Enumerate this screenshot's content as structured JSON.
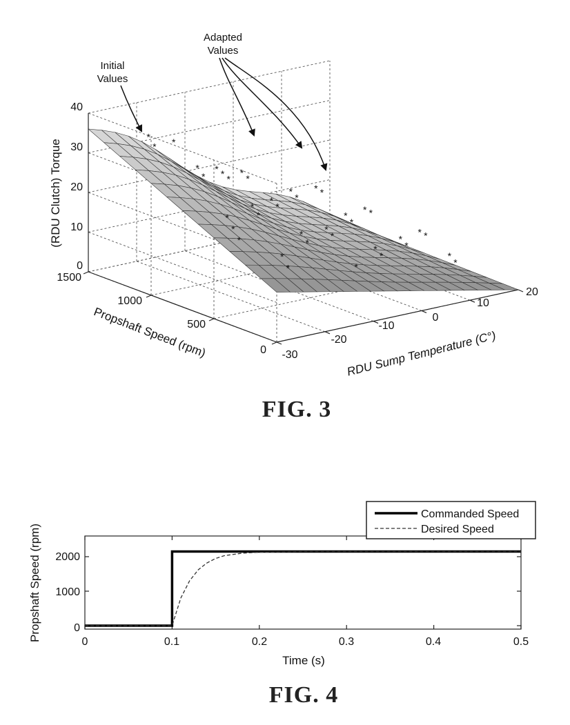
{
  "chart_data": [
    {
      "type": "surface",
      "caption": "FIG. 3",
      "xlabel": "RDU Sump Temperature (C°)",
      "ylabel": "Propshaft Speed (rpm)",
      "zlabel": "(RDU Clutch) Torque",
      "xlim": [
        -30,
        20
      ],
      "ylim": [
        0,
        1500
      ],
      "zlim": [
        0,
        40
      ],
      "x_ticks": [
        "-30",
        "-20",
        "-10",
        "0",
        "10",
        "20"
      ],
      "y_ticks": [
        "0",
        "500",
        "1000",
        "1500"
      ],
      "z_ticks": [
        "0",
        "10",
        "20",
        "30",
        "40"
      ],
      "grid": true,
      "annotations": [
        {
          "text": "Initial",
          "text2": "Values"
        },
        {
          "text": "Adapted",
          "text2": "Values"
        }
      ],
      "series": [
        {
          "kind": "surface",
          "description_free": true
        },
        {
          "kind": "scatter_markers"
        }
      ]
    },
    {
      "type": "line",
      "caption": "FIG. 4",
      "xlabel": "Time (s)",
      "ylabel": "Propshaft Speed (rpm)",
      "xlim": [
        0,
        0.5
      ],
      "ylim": [
        -100,
        2600
      ],
      "x_ticks": [
        "0",
        "0.1",
        "0.2",
        "0.3",
        "0.4",
        "0.5"
      ],
      "y_ticks": [
        "0",
        "1000",
        "2000"
      ],
      "legend_position": "top-right",
      "series": [
        {
          "name": "Commanded Speed",
          "style": "solid-thick",
          "x": [
            0,
            0.1,
            0.1,
            0.5
          ],
          "y": [
            0,
            0,
            2150,
            2150
          ]
        },
        {
          "name": "Desired Speed",
          "style": "dashed",
          "x": [
            0,
            0.1,
            0.11,
            0.12,
            0.13,
            0.14,
            0.15,
            0.16,
            0.18,
            0.2,
            0.25,
            0.3,
            0.5
          ],
          "y": [
            0,
            0,
            800,
            1300,
            1620,
            1820,
            1950,
            2030,
            2100,
            2130,
            2150,
            2150,
            2150
          ]
        }
      ]
    }
  ]
}
